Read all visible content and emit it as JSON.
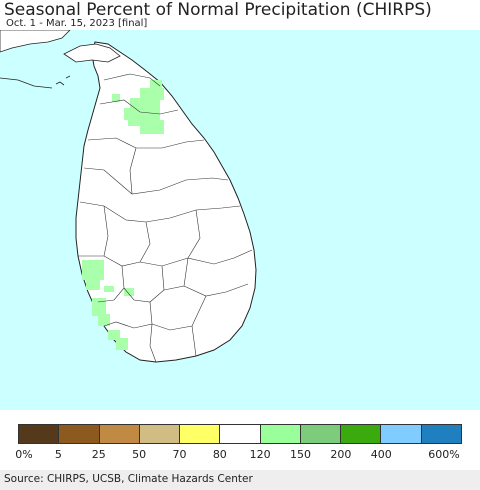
{
  "header": {
    "title": "Seasonal Percent of Normal Precipitation (CHIRPS)",
    "subtitle": "Oct. 1 - Mar. 15, 2023 [final]"
  },
  "map": {
    "ocean_color": "#ccffff",
    "land_color": "#ffffff",
    "highlight_color": "#aaffaa",
    "region": "Sri Lanka"
  },
  "legend": {
    "colors": [
      "#54391a",
      "#8c5a1f",
      "#c08a45",
      "#d1bd84",
      "#ffff66",
      "#ffffff",
      "#9aff9a",
      "#7ccc7c",
      "#3aaa0e",
      "#80ccff",
      "#1f7fbf"
    ],
    "labels": [
      "0%",
      "5",
      "25",
      "50",
      "70",
      "80",
      "120",
      "150",
      "200",
      "400",
      "600%"
    ]
  },
  "footer": {
    "source": "Source: CHIRPS, UCSB, Climate Hazards Center"
  }
}
